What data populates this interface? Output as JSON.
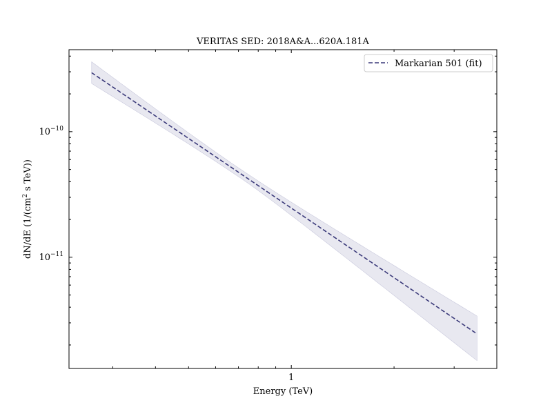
{
  "chart_data": {
    "type": "line",
    "title": "VERITAS SED: 2018A&A...620A.181A",
    "xlabel": "Energy (TeV)",
    "ylabel_main": "dN/dE (1/(cm",
    "ylabel_sup": "2",
    "ylabel_tail": " s TeV))",
    "xscale": "log",
    "yscale": "log",
    "xlim": [
      0.2232,
      4.0
    ],
    "ylim": [
      1.3e-12,
      4.5e-10
    ],
    "x_ticks": [
      {
        "value": 1,
        "label": "1"
      }
    ],
    "y_ticks": [
      {
        "value": 1e-10,
        "base": "10",
        "exp": "−10"
      },
      {
        "value": 1e-11,
        "base": "10",
        "exp": "−11"
      }
    ],
    "grid": false,
    "legend_position": "top-right",
    "series": [
      {
        "name": "Markarian 501 (fit)",
        "style": "dashed",
        "color": "#3b3a7a",
        "band_color": "#e8e8f0",
        "band_edge_color": "#c8c8dc",
        "x_min": 0.26,
        "x_max": 3.5,
        "x_pivot": 0.7,
        "y_at_xmin": 2.95e-10,
        "y_at_xmax": 2.45e-12,
        "band_upper_at_xmin": 3.6e-10,
        "band_lower_at_xmin": 2.42e-10,
        "band_upper_at_xmax": 3.4e-12,
        "band_lower_at_xmax": 1.5e-12,
        "band_halfwidth_at_pivot_dex": 0.035
      }
    ]
  }
}
